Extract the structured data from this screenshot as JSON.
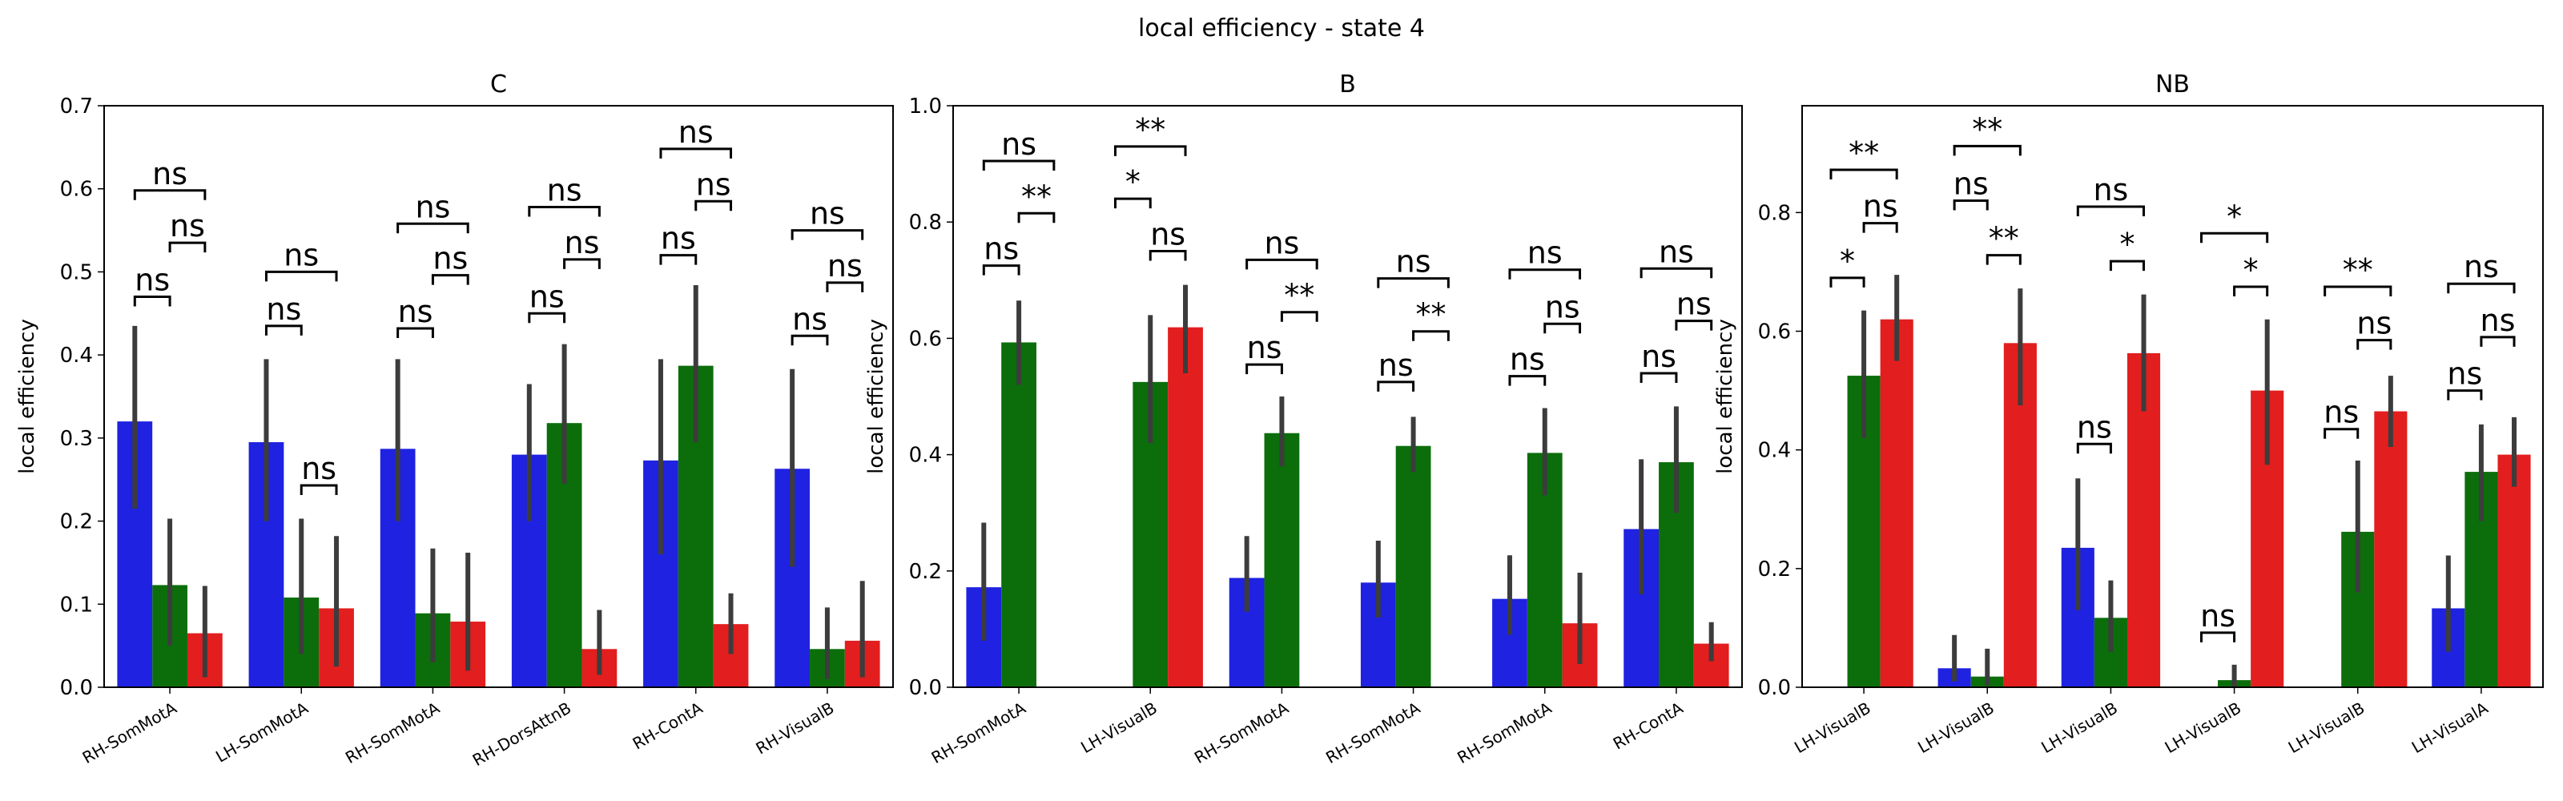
{
  "figure": {
    "suptitle": "local efficiency - state 4"
  },
  "chart_data": [
    {
      "type": "bar",
      "title": "C",
      "ylabel": "local efficiency",
      "ylim": [
        0,
        0.7
      ],
      "yticks": [
        0.0,
        0.1,
        0.2,
        0.3,
        0.4,
        0.5,
        0.6,
        0.7
      ],
      "ytick_labels": [
        "0.0",
        "0.1",
        "0.2",
        "0.3",
        "0.4",
        "0.5",
        "0.6",
        "0.7"
      ],
      "categories": [
        "RH-SomMotA",
        "LH-SomMotA",
        "RH-SomMotA",
        "RH-DorsAttnB",
        "RH-ContA",
        "RH-VisualB"
      ],
      "series": [
        {
          "values": [
            0.32,
            0.295,
            0.287,
            0.28,
            0.273,
            0.263
          ],
          "err_low": [
            0.215,
            0.2,
            0.2,
            0.2,
            0.16,
            0.145
          ],
          "err_high": [
            0.435,
            0.395,
            0.395,
            0.365,
            0.395,
            0.383
          ],
          "color": "#1f22e0"
        },
        {
          "values": [
            0.123,
            0.108,
            0.089,
            0.318,
            0.387,
            0.046
          ],
          "err_low": [
            0.05,
            0.04,
            0.03,
            0.245,
            0.295,
            0.01
          ],
          "err_high": [
            0.203,
            0.203,
            0.167,
            0.413,
            0.484,
            0.096
          ],
          "color": "#0b6e0b"
        },
        {
          "values": [
            0.065,
            0.095,
            0.079,
            0.046,
            0.076,
            0.056
          ],
          "err_low": [
            0.012,
            0.025,
            0.02,
            0.015,
            0.04,
            0.012
          ],
          "err_high": [
            0.122,
            0.182,
            0.162,
            0.093,
            0.113,
            0.128
          ],
          "color": "#e21e1e"
        }
      ],
      "annotations": [
        {
          "cat": 0,
          "from": 0,
          "to": 1,
          "y": 0.47,
          "label": "ns"
        },
        {
          "cat": 0,
          "from": 1,
          "to": 2,
          "y": 0.535,
          "label": "ns"
        },
        {
          "cat": 0,
          "from": 0,
          "to": 2,
          "y": 0.598,
          "label": "ns"
        },
        {
          "cat": 1,
          "from": 0,
          "to": 1,
          "y": 0.435,
          "label": "ns"
        },
        {
          "cat": 1,
          "from": 1,
          "to": 2,
          "y": 0.243,
          "label": "ns"
        },
        {
          "cat": 1,
          "from": 0,
          "to": 2,
          "y": 0.5,
          "label": "ns"
        },
        {
          "cat": 2,
          "from": 0,
          "to": 1,
          "y": 0.432,
          "label": "ns"
        },
        {
          "cat": 2,
          "from": 1,
          "to": 2,
          "y": 0.496,
          "label": "ns"
        },
        {
          "cat": 2,
          "from": 0,
          "to": 2,
          "y": 0.558,
          "label": "ns"
        },
        {
          "cat": 3,
          "from": 0,
          "to": 1,
          "y": 0.45,
          "label": "ns"
        },
        {
          "cat": 3,
          "from": 1,
          "to": 2,
          "y": 0.515,
          "label": "ns"
        },
        {
          "cat": 3,
          "from": 0,
          "to": 2,
          "y": 0.578,
          "label": "ns"
        },
        {
          "cat": 4,
          "from": 0,
          "to": 1,
          "y": 0.52,
          "label": "ns"
        },
        {
          "cat": 4,
          "from": 1,
          "to": 2,
          "y": 0.585,
          "label": "ns"
        },
        {
          "cat": 4,
          "from": 0,
          "to": 2,
          "y": 0.648,
          "label": "ns"
        },
        {
          "cat": 5,
          "from": 0,
          "to": 1,
          "y": 0.423,
          "label": "ns"
        },
        {
          "cat": 5,
          "from": 1,
          "to": 2,
          "y": 0.487,
          "label": "ns"
        },
        {
          "cat": 5,
          "from": 0,
          "to": 2,
          "y": 0.55,
          "label": "ns"
        }
      ]
    },
    {
      "type": "bar",
      "title": "B",
      "ylabel": "local efficiency",
      "ylim": [
        0,
        1.0
      ],
      "yticks": [
        0.0,
        0.2,
        0.4,
        0.6,
        0.8,
        1.0
      ],
      "ytick_labels": [
        "0.0",
        "0.2",
        "0.4",
        "0.6",
        "0.8",
        "1.0"
      ],
      "categories": [
        "RH-SomMotA",
        "LH-VisualB",
        "RH-SomMotA",
        "RH-SomMotA",
        "RH-SomMotA",
        "RH-ContA"
      ],
      "series": [
        {
          "values": [
            0.172,
            0.0,
            0.188,
            0.18,
            0.152,
            0.272
          ],
          "err_low": [
            0.08,
            null,
            0.13,
            0.12,
            0.09,
            0.16
          ],
          "err_high": [
            0.283,
            null,
            0.26,
            0.252,
            0.227,
            0.392
          ],
          "color": "#1f22e0"
        },
        {
          "values": [
            0.593,
            0.525,
            0.437,
            0.415,
            0.403,
            0.387
          ],
          "err_low": [
            0.52,
            0.42,
            0.38,
            0.37,
            0.33,
            0.3
          ],
          "err_high": [
            0.665,
            0.64,
            0.5,
            0.465,
            0.48,
            0.483
          ],
          "color": "#0b6e0b"
        },
        {
          "values": [
            0.0,
            0.619,
            0.0,
            0.0,
            0.11,
            0.075
          ],
          "err_low": [
            null,
            0.54,
            null,
            null,
            0.04,
            0.045
          ],
          "err_high": [
            null,
            0.692,
            null,
            null,
            0.197,
            0.112
          ],
          "color": "#e21e1e"
        }
      ],
      "annotations": [
        {
          "cat": 0,
          "from": 0,
          "to": 1,
          "y": 0.725,
          "label": "ns"
        },
        {
          "cat": 0,
          "from": 1,
          "to": 2,
          "y": 0.815,
          "label": "**"
        },
        {
          "cat": 0,
          "from": 0,
          "to": 2,
          "y": 0.905,
          "label": "ns"
        },
        {
          "cat": 1,
          "from": 0,
          "to": 1,
          "y": 0.84,
          "label": "*"
        },
        {
          "cat": 1,
          "from": 1,
          "to": 2,
          "y": 0.75,
          "label": "ns"
        },
        {
          "cat": 1,
          "from": 0,
          "to": 2,
          "y": 0.93,
          "label": "**"
        },
        {
          "cat": 2,
          "from": 0,
          "to": 1,
          "y": 0.555,
          "label": "ns"
        },
        {
          "cat": 2,
          "from": 1,
          "to": 2,
          "y": 0.645,
          "label": "**"
        },
        {
          "cat": 2,
          "from": 0,
          "to": 2,
          "y": 0.735,
          "label": "ns"
        },
        {
          "cat": 3,
          "from": 0,
          "to": 1,
          "y": 0.525,
          "label": "ns"
        },
        {
          "cat": 3,
          "from": 1,
          "to": 2,
          "y": 0.612,
          "label": "**"
        },
        {
          "cat": 3,
          "from": 0,
          "to": 2,
          "y": 0.703,
          "label": "ns"
        },
        {
          "cat": 4,
          "from": 0,
          "to": 1,
          "y": 0.535,
          "label": "ns"
        },
        {
          "cat": 4,
          "from": 1,
          "to": 2,
          "y": 0.625,
          "label": "ns"
        },
        {
          "cat": 4,
          "from": 0,
          "to": 2,
          "y": 0.718,
          "label": "ns"
        },
        {
          "cat": 5,
          "from": 0,
          "to": 1,
          "y": 0.54,
          "label": "ns"
        },
        {
          "cat": 5,
          "from": 1,
          "to": 2,
          "y": 0.63,
          "label": "ns"
        },
        {
          "cat": 5,
          "from": 0,
          "to": 2,
          "y": 0.72,
          "label": "ns"
        }
      ]
    },
    {
      "type": "bar",
      "title": "NB",
      "ylabel": "local efficiency",
      "ylim": [
        0,
        0.98
      ],
      "yticks": [
        0.0,
        0.2,
        0.4,
        0.6,
        0.8
      ],
      "ytick_labels": [
        "0.0",
        "0.2",
        "0.4",
        "0.6",
        "0.8"
      ],
      "categories": [
        "LH-VisualB",
        "LH-VisualB",
        "LH-VisualB",
        "LH-VisualB",
        "LH-VisualB",
        "LH-VisualA"
      ],
      "series": [
        {
          "values": [
            0.0,
            0.032,
            0.235,
            0.0,
            0.0,
            0.133
          ],
          "err_low": [
            null,
            0.01,
            0.13,
            null,
            null,
            0.06
          ],
          "err_high": [
            null,
            0.088,
            0.352,
            null,
            null,
            0.222
          ],
          "color": "#1f22e0"
        },
        {
          "values": [
            0.525,
            0.018,
            0.117,
            0.012,
            0.262,
            0.363
          ],
          "err_low": [
            0.42,
            0.003,
            0.06,
            0.0,
            0.16,
            0.28
          ],
          "err_high": [
            0.635,
            0.065,
            0.18,
            0.038,
            0.382,
            0.443
          ],
          "color": "#0b6e0b"
        },
        {
          "values": [
            0.62,
            0.58,
            0.563,
            0.5,
            0.465,
            0.392
          ],
          "err_low": [
            0.55,
            0.475,
            0.465,
            0.375,
            0.405,
            0.338
          ],
          "err_high": [
            0.695,
            0.672,
            0.662,
            0.62,
            0.525,
            0.455
          ],
          "color": "#e21e1e"
        }
      ],
      "annotations": [
        {
          "cat": 0,
          "from": 0,
          "to": 1,
          "y": 0.69,
          "label": "*"
        },
        {
          "cat": 0,
          "from": 1,
          "to": 2,
          "y": 0.782,
          "label": "ns"
        },
        {
          "cat": 0,
          "from": 0,
          "to": 2,
          "y": 0.872,
          "label": "**"
        },
        {
          "cat": 1,
          "from": 0,
          "to": 1,
          "y": 0.82,
          "label": "ns"
        },
        {
          "cat": 1,
          "from": 1,
          "to": 2,
          "y": 0.728,
          "label": "**"
        },
        {
          "cat": 1,
          "from": 0,
          "to": 2,
          "y": 0.912,
          "label": "**"
        },
        {
          "cat": 2,
          "from": 0,
          "to": 1,
          "y": 0.41,
          "label": "ns"
        },
        {
          "cat": 2,
          "from": 1,
          "to": 2,
          "y": 0.718,
          "label": "*"
        },
        {
          "cat": 2,
          "from": 0,
          "to": 2,
          "y": 0.81,
          "label": "ns"
        },
        {
          "cat": 3,
          "from": 0,
          "to": 1,
          "y": 0.092,
          "label": "ns"
        },
        {
          "cat": 3,
          "from": 1,
          "to": 2,
          "y": 0.675,
          "label": "*"
        },
        {
          "cat": 3,
          "from": 0,
          "to": 2,
          "y": 0.765,
          "label": "*"
        },
        {
          "cat": 4,
          "from": 0,
          "to": 1,
          "y": 0.435,
          "label": "ns"
        },
        {
          "cat": 4,
          "from": 1,
          "to": 2,
          "y": 0.585,
          "label": "ns"
        },
        {
          "cat": 4,
          "from": 0,
          "to": 2,
          "y": 0.675,
          "label": "**"
        },
        {
          "cat": 5,
          "from": 0,
          "to": 1,
          "y": 0.5,
          "label": "ns"
        },
        {
          "cat": 5,
          "from": 1,
          "to": 2,
          "y": 0.59,
          "label": "ns"
        },
        {
          "cat": 5,
          "from": 0,
          "to": 2,
          "y": 0.68,
          "label": "ns"
        }
      ]
    }
  ]
}
